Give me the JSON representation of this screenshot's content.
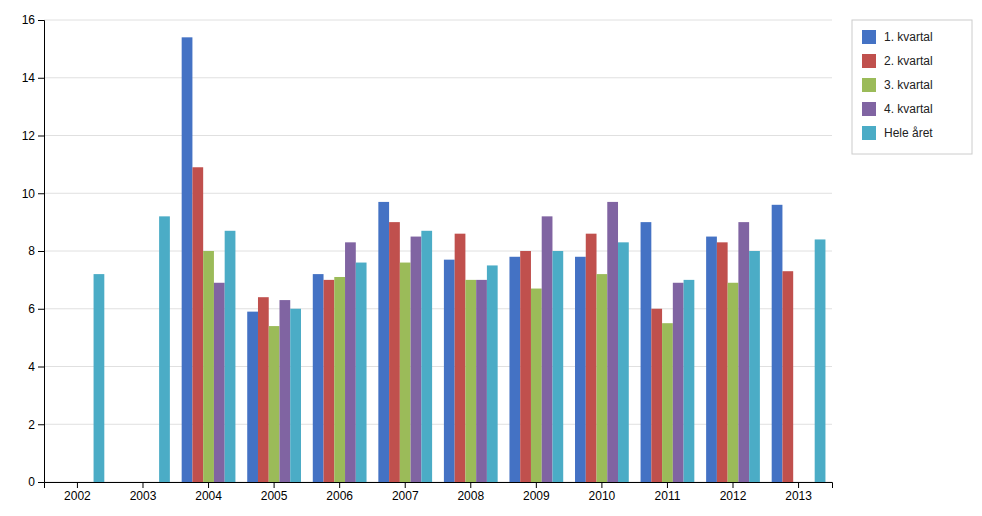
{
  "chart_data": {
    "type": "bar",
    "categories": [
      "2002",
      "2003",
      "2004",
      "2005",
      "2006",
      "2007",
      "2008",
      "2009",
      "2010",
      "2011",
      "2012",
      "2013"
    ],
    "series": [
      {
        "name": "1. kvartal",
        "color": "#4472C4",
        "values": [
          null,
          null,
          15.4,
          5.9,
          7.2,
          9.7,
          7.7,
          7.8,
          7.8,
          9.0,
          8.5,
          9.6
        ]
      },
      {
        "name": "2. kvartal",
        "color": "#C0504D",
        "values": [
          null,
          null,
          10.9,
          6.4,
          7.0,
          9.0,
          8.6,
          8.0,
          8.6,
          6.0,
          8.3,
          7.3
        ]
      },
      {
        "name": "3. kvartal",
        "color": "#9BBB59",
        "values": [
          null,
          null,
          8.0,
          5.4,
          7.1,
          7.6,
          7.0,
          6.7,
          7.2,
          5.5,
          6.9,
          null
        ]
      },
      {
        "name": "4. kvartal",
        "color": "#8064A2",
        "values": [
          null,
          null,
          6.9,
          6.3,
          8.3,
          8.5,
          7.0,
          9.2,
          9.7,
          6.9,
          9.0,
          null
        ]
      },
      {
        "name": "Hele året",
        "color": "#4BACC6",
        "values": [
          7.2,
          9.2,
          8.7,
          6.0,
          7.6,
          8.7,
          7.5,
          8.0,
          8.3,
          7.0,
          8.0,
          8.4
        ]
      }
    ],
    "ylim": [
      0,
      16
    ],
    "yticks": [
      0,
      2,
      4,
      6,
      8,
      10,
      12,
      14,
      16
    ],
    "grid": true,
    "legend": "right"
  }
}
